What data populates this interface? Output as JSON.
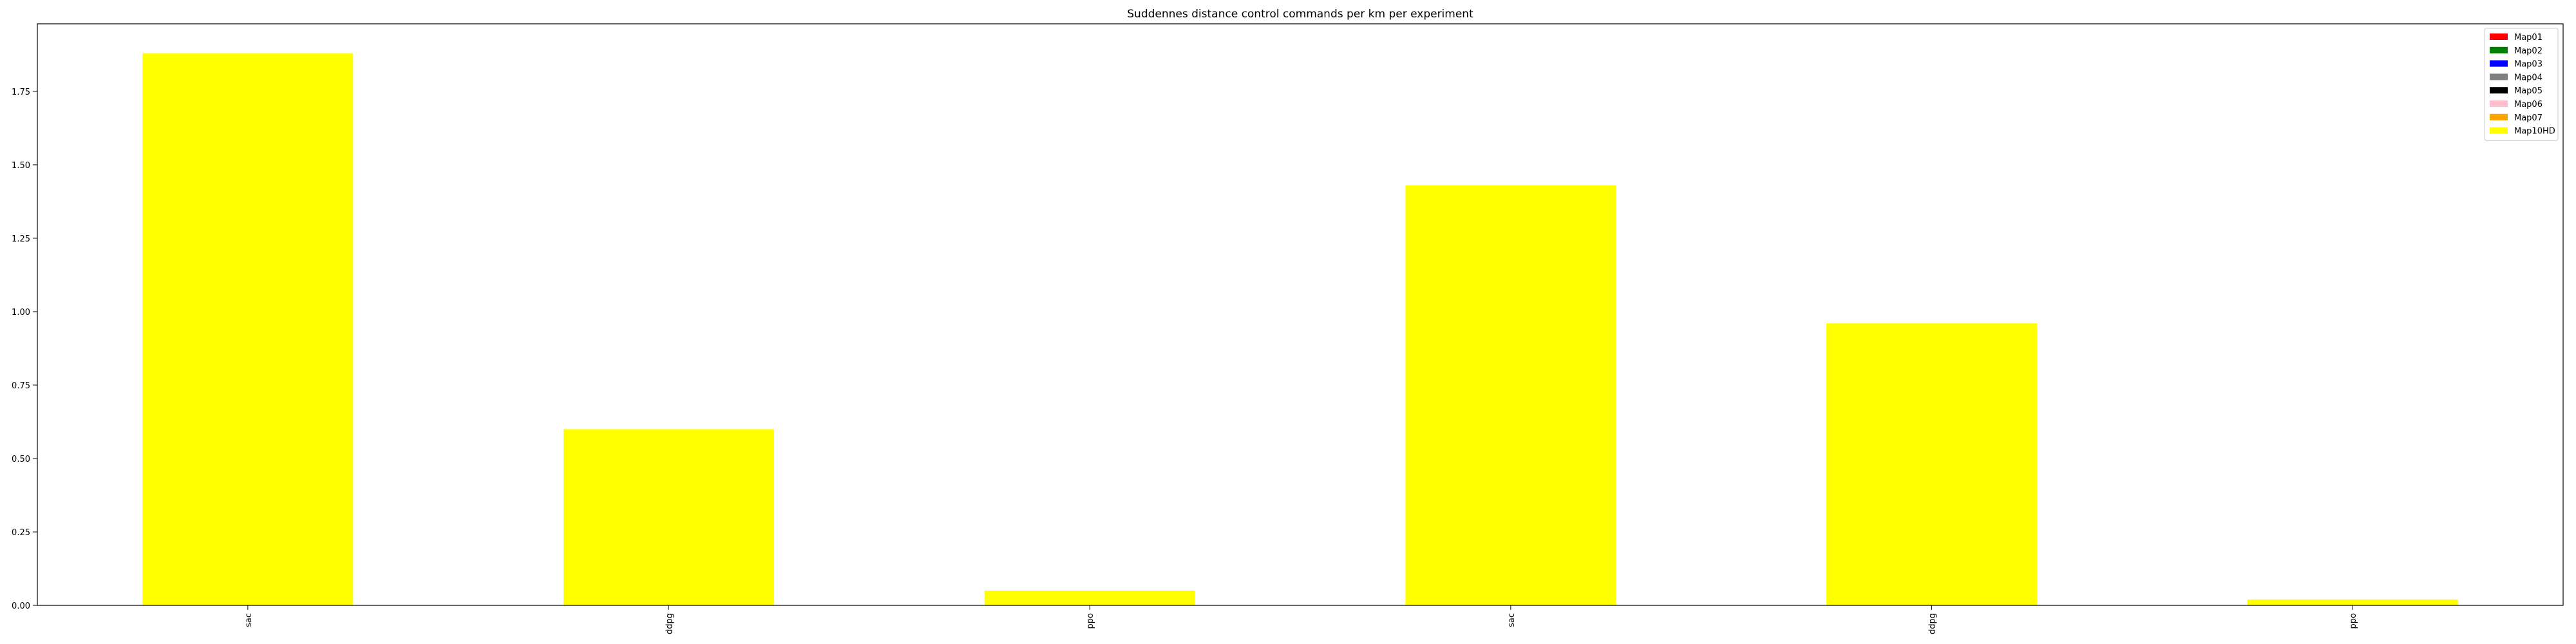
{
  "chart_data": {
    "type": "bar",
    "title": "Suddennes distance control commands per km per experiment",
    "xlabel": "",
    "ylabel": "",
    "categories": [
      "sac",
      "ddpg",
      "ppo",
      "sac",
      "ddpg",
      "ppo"
    ],
    "ylim": [
      0,
      1.98
    ],
    "yticks": [
      0.0,
      0.25,
      0.5,
      0.75,
      1.0,
      1.25,
      1.5,
      1.75
    ],
    "ytick_labels": [
      "0.00",
      "0.25",
      "0.50",
      "0.75",
      "1.00",
      "1.25",
      "1.50",
      "1.75"
    ],
    "series": [
      {
        "name": "Map01",
        "color": "#ff0000",
        "values": [
          0,
          0,
          0,
          0,
          0,
          0
        ]
      },
      {
        "name": "Map02",
        "color": "#008000",
        "values": [
          0,
          0,
          0,
          0,
          0,
          0
        ]
      },
      {
        "name": "Map03",
        "color": "#0000ff",
        "values": [
          0,
          0,
          0,
          0,
          0,
          0
        ]
      },
      {
        "name": "Map04",
        "color": "#808080",
        "values": [
          0,
          0,
          0,
          0,
          0,
          0
        ]
      },
      {
        "name": "Map05",
        "color": "#000000",
        "values": [
          0,
          0,
          0,
          0,
          0,
          0
        ]
      },
      {
        "name": "Map06",
        "color": "#ffc0cb",
        "values": [
          0,
          0,
          0,
          0,
          0,
          0
        ]
      },
      {
        "name": "Map07",
        "color": "#ffa500",
        "values": [
          0,
          0,
          0,
          0,
          0,
          0
        ]
      },
      {
        "name": "Map10HD",
        "color": "#ffff00",
        "values": [
          1.88,
          0.6,
          0.05,
          1.43,
          0.96,
          0.02
        ]
      }
    ],
    "legend_position": "top-right",
    "grid": false
  }
}
